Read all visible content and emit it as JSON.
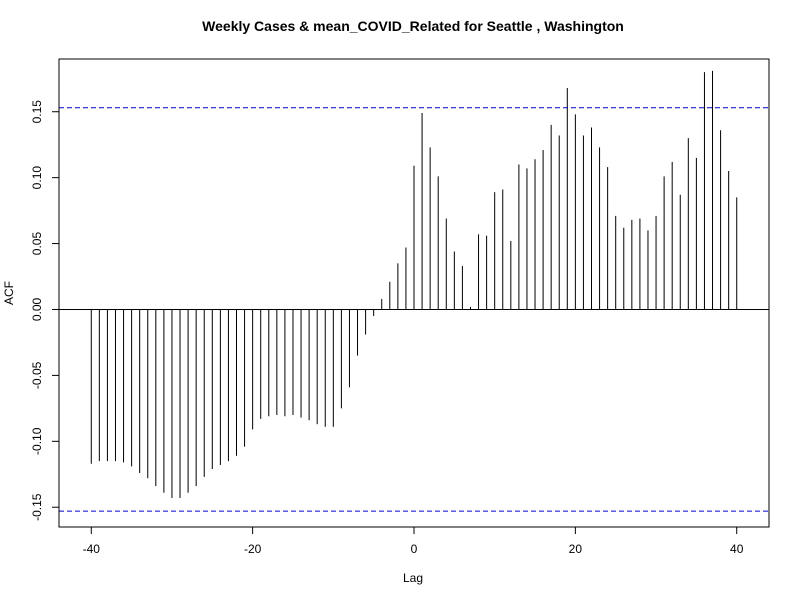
{
  "chart_data": {
    "type": "bar",
    "title": "Weekly Cases & mean_COVID_Related for Seattle , Washington",
    "xlabel": "Lag",
    "ylabel": "ACF",
    "xlim": [
      -44,
      44
    ],
    "ylim": [
      -0.165,
      0.19
    ],
    "xticks": [
      -40,
      -20,
      0,
      20,
      40
    ],
    "xtick_labels": [
      "-40",
      "-20",
      "0",
      "20",
      "40"
    ],
    "yticks": [
      -0.15,
      -0.1,
      -0.05,
      0.0,
      0.05,
      0.1,
      0.15
    ],
    "ytick_labels": [
      "-0.15",
      "-0.10",
      "-0.05",
      "0.00",
      "0.05",
      "0.10",
      "0.15"
    ],
    "confidence_band": [
      0.153,
      -0.153
    ],
    "grid": false,
    "series": [
      {
        "x": [
          -40,
          -39,
          -38,
          -37,
          -36,
          -35,
          -34,
          -33,
          -32,
          -31,
          -30,
          -29,
          -28,
          -27,
          -26,
          -25,
          -24,
          -23,
          -22,
          -21,
          -20,
          -19,
          -18,
          -17,
          -16,
          -15,
          -14,
          -13,
          -12,
          -11,
          -10,
          -9,
          -8,
          -7,
          -6,
          -5,
          -4,
          -3,
          -2,
          -1,
          0,
          1,
          2,
          3,
          4,
          5,
          6,
          7,
          8,
          9,
          10,
          11,
          12,
          13,
          14,
          15,
          16,
          17,
          18,
          19,
          20,
          21,
          22,
          23,
          24,
          25,
          26,
          27,
          28,
          29,
          30,
          31,
          32,
          33,
          34,
          35,
          36,
          37,
          38,
          39,
          40
        ],
        "values": [
          -0.117,
          -0.115,
          -0.115,
          -0.115,
          -0.116,
          -0.119,
          -0.124,
          -0.128,
          -0.134,
          -0.139,
          -0.143,
          -0.143,
          -0.139,
          -0.134,
          -0.127,
          -0.121,
          -0.118,
          -0.115,
          -0.111,
          -0.104,
          -0.091,
          -0.083,
          -0.081,
          -0.08,
          -0.081,
          -0.08,
          -0.082,
          -0.084,
          -0.087,
          -0.089,
          -0.089,
          -0.075,
          -0.059,
          -0.035,
          -0.019,
          -0.005,
          0.008,
          0.021,
          0.035,
          0.047,
          0.109,
          0.149,
          0.123,
          0.101,
          0.069,
          0.044,
          0.033,
          0.002,
          0.057,
          0.056,
          0.089,
          0.091,
          0.052,
          0.11,
          0.107,
          0.114,
          0.121,
          0.14,
          0.132,
          0.168,
          0.148,
          0.132,
          0.138,
          0.123,
          0.108,
          0.071,
          0.062,
          0.068,
          0.069,
          0.06,
          0.071,
          0.101,
          0.112,
          0.087,
          0.13,
          0.115,
          0.18,
          0.181,
          0.136,
          0.105,
          0.085
        ]
      }
    ]
  }
}
